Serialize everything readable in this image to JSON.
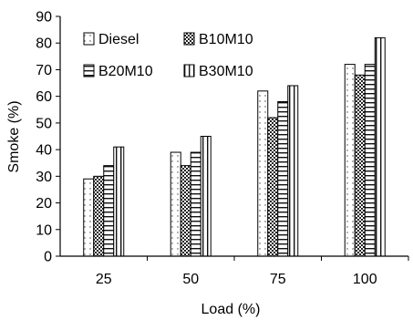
{
  "chart_data": {
    "type": "bar",
    "xlabel": "Load (%)",
    "ylabel": "Smoke (%)",
    "ylim": [
      0,
      90
    ],
    "yticks": [
      0,
      10,
      20,
      30,
      40,
      50,
      60,
      70,
      80,
      90
    ],
    "categories": [
      "25",
      "50",
      "75",
      "100"
    ],
    "series": [
      {
        "name": "Diesel",
        "pattern": "dots",
        "values": [
          29,
          39,
          62,
          72
        ]
      },
      {
        "name": "B10M10",
        "pattern": "checker",
        "values": [
          30,
          34,
          52,
          68
        ]
      },
      {
        "name": "B20M10",
        "pattern": "hlines",
        "values": [
          34,
          39,
          58,
          72
        ]
      },
      {
        "name": "B30M10",
        "pattern": "vlines",
        "values": [
          41,
          45,
          64,
          82
        ]
      }
    ],
    "grid": false,
    "legend": "top-left, inside plot, two columns"
  }
}
